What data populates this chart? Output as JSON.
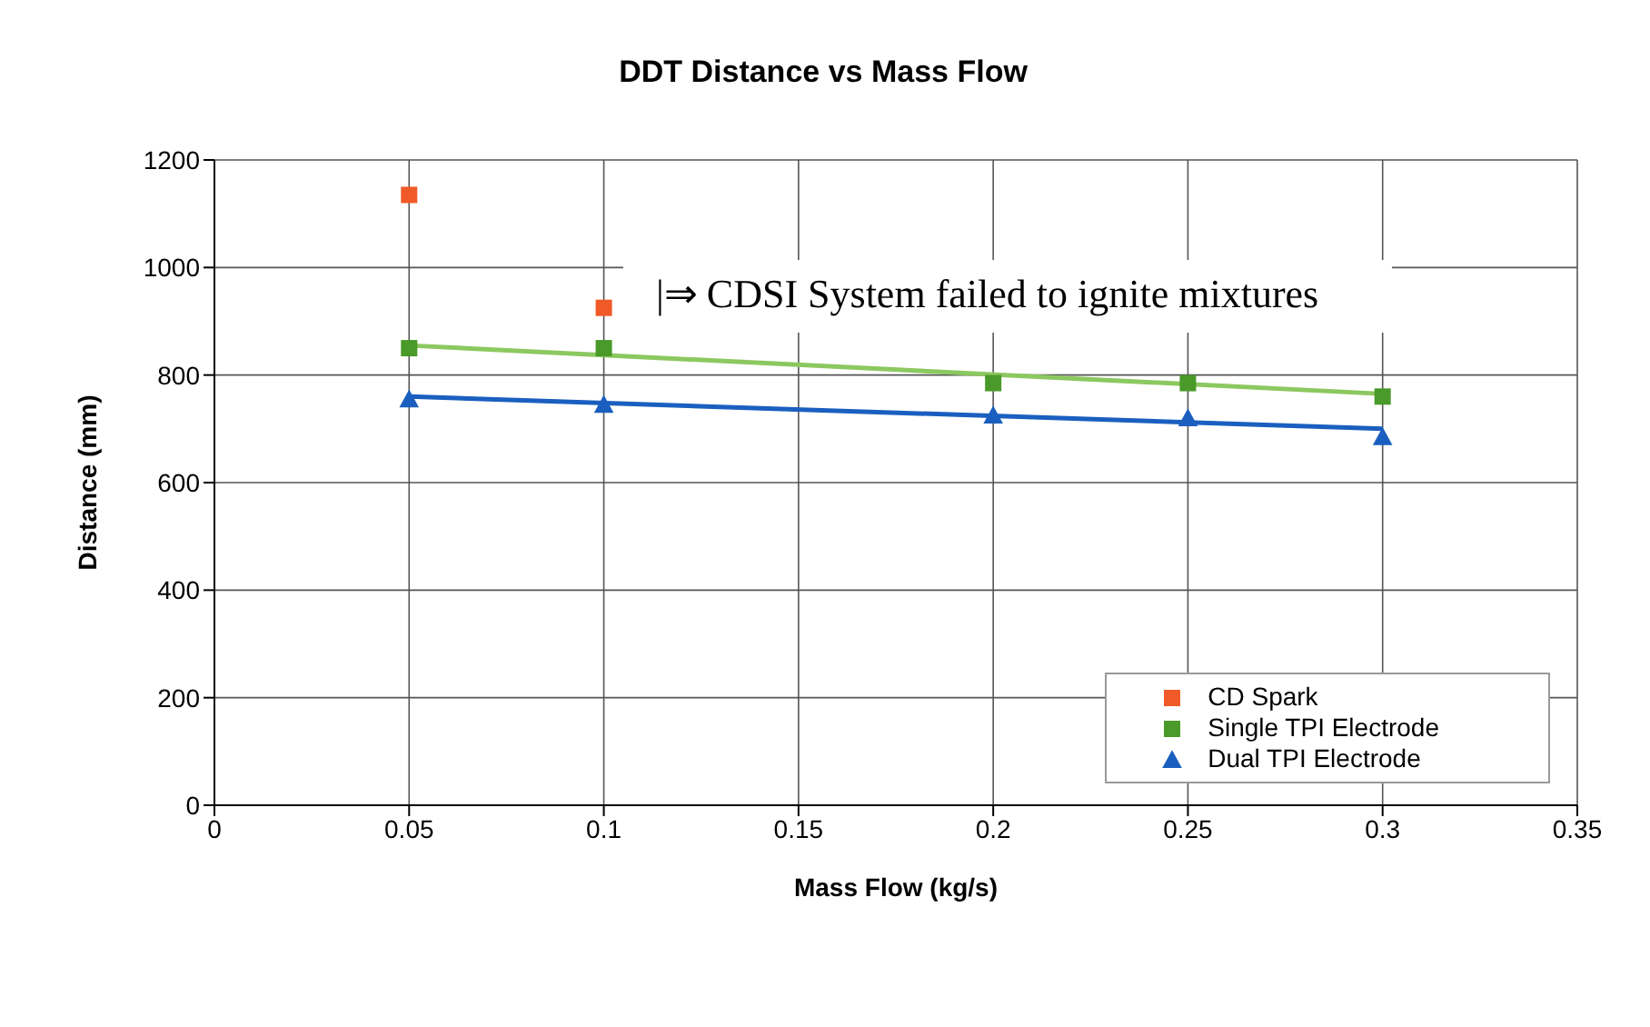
{
  "chart_data": {
    "type": "scatter",
    "title": "DDT Distance vs Mass Flow",
    "xlabel": "Mass Flow (kg/s)",
    "ylabel": "Distance (mm)",
    "xlim": [
      0,
      0.35
    ],
    "xticks": [
      0,
      0.05,
      0.1,
      0.15,
      0.2,
      0.25,
      0.3,
      0.35
    ],
    "ylim": [
      0,
      1200
    ],
    "yticks": [
      0,
      200,
      400,
      600,
      800,
      1000,
      1200
    ],
    "grid": true,
    "legend": "bottom right",
    "annotations": [
      "|⇒ CDSI System failed to ignite mixtures"
    ],
    "series": [
      {
        "name": "CD Spark",
        "color": "#f05a28",
        "marker": "square",
        "x": [
          0.05,
          0.1
        ],
        "values": [
          1135,
          925
        ]
      },
      {
        "name": "Single TPI Electrode",
        "color": "#4a9a2a",
        "marker": "square",
        "x": [
          0.05,
          0.1,
          0.2,
          0.25,
          0.3
        ],
        "values": [
          850,
          850,
          785,
          785,
          760
        ]
      },
      {
        "name": "Dual TPI Electrode",
        "color": "#1a5fc0",
        "marker": "triangle",
        "x": [
          0.05,
          0.1,
          0.2,
          0.25,
          0.3
        ],
        "values": [
          755,
          745,
          725,
          720,
          685
        ]
      },
      {
        "type": "line",
        "color": "#8cc860",
        "marker": "none",
        "x": [
          0.05,
          0.3
        ],
        "values": [
          855,
          765
        ]
      },
      {
        "type": "line",
        "color": "#1a5fc0",
        "marker": "none",
        "x": [
          0.05,
          0.3
        ],
        "values": [
          760,
          700
        ]
      }
    ]
  }
}
